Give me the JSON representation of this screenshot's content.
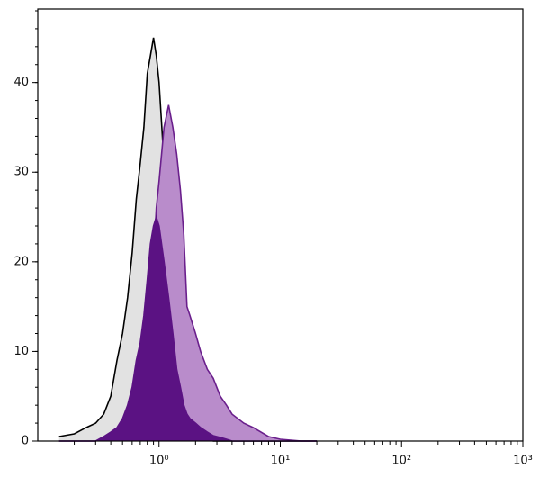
{
  "chart_data": {
    "type": "histogram-overlay",
    "x": [
      0.15,
      0.2,
      0.25,
      0.3,
      0.35,
      0.4,
      0.45,
      0.5,
      0.55,
      0.6,
      0.65,
      0.7,
      0.75,
      0.8,
      0.85,
      0.9,
      0.95,
      1.0,
      1.1,
      1.2,
      1.3,
      1.4,
      1.5,
      1.6,
      1.7,
      1.8,
      2.0,
      2.2,
      2.5,
      2.8,
      3.2,
      3.6,
      4,
      5,
      6,
      8,
      10,
      15,
      20
    ],
    "series": [
      {
        "color": "#000000",
        "fill": "#e2e2e2",
        "values": [
          0.5,
          0.8,
          1.5,
          2,
          3,
          5,
          9,
          12,
          16,
          21,
          27,
          31,
          35,
          41,
          43,
          45,
          43,
          40,
          31,
          24,
          18,
          12,
          8,
          5,
          3,
          2,
          1,
          0.5,
          0.2,
          0,
          0,
          0,
          0,
          0,
          0,
          0,
          0,
          0,
          0
        ]
      },
      {
        "color": "#6a1f8c",
        "fill": "#b98ccb",
        "values": [
          0,
          0,
          0,
          0,
          0.3,
          0.6,
          1,
          1.5,
          2.5,
          3.5,
          5,
          7,
          9,
          12,
          16,
          20,
          26,
          29,
          35,
          37.5,
          35,
          32,
          28,
          23,
          15,
          14,
          12,
          10,
          8,
          7,
          5,
          4,
          3,
          2,
          1.5,
          0.5,
          0.2,
          0,
          0
        ]
      },
      {
        "color": "#5b1283",
        "fill": "#5b1283",
        "values": [
          0,
          0,
          0,
          0,
          0.5,
          1,
          1.5,
          2.5,
          4,
          6,
          9,
          11,
          14,
          18,
          22,
          24,
          25,
          24,
          20,
          16,
          12,
          8,
          6,
          4,
          3,
          2.5,
          2,
          1.5,
          1,
          0.6,
          0.4,
          0.2,
          0,
          0,
          0,
          0,
          0,
          0,
          0
        ]
      }
    ],
    "log_x": true,
    "xlim": [
      0.1,
      1000
    ],
    "xticks": [
      {
        "value": 1,
        "label": "10⁰"
      },
      {
        "value": 10,
        "label": "10¹"
      },
      {
        "value": 100,
        "label": "10²"
      },
      {
        "value": 1000,
        "label": "10³"
      }
    ],
    "ylim": [
      0,
      48.2
    ],
    "yticks": [
      0,
      10,
      20,
      30,
      40
    ]
  }
}
